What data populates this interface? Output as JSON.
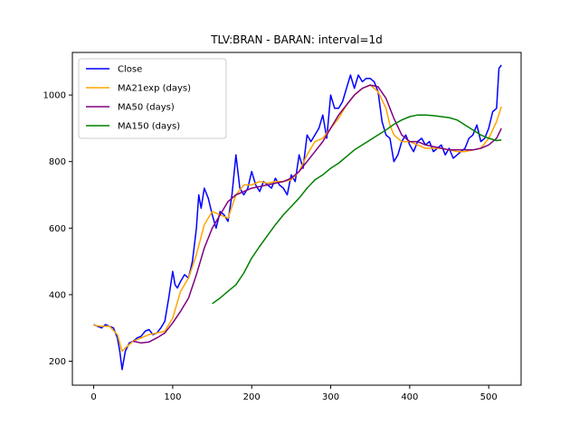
{
  "chart_data": {
    "type": "line",
    "title": "TLV:BRAN - BARAN: interval=1d",
    "xlabel": "",
    "ylabel": "",
    "xlim": [
      -27,
      541
    ],
    "ylim": [
      128,
      1128
    ],
    "xticks": [
      0,
      100,
      200,
      300,
      400,
      500
    ],
    "yticks": [
      200,
      400,
      600,
      800,
      1000
    ],
    "grid": false,
    "legend_position": "top-left",
    "series": [
      {
        "name": "Close",
        "color": "#0000ff",
        "x": [
          0,
          5,
          10,
          15,
          20,
          25,
          30,
          33,
          36,
          40,
          45,
          50,
          55,
          60,
          65,
          70,
          75,
          80,
          85,
          90,
          95,
          100,
          103,
          106,
          110,
          115,
          120,
          125,
          130,
          133,
          136,
          140,
          145,
          150,
          155,
          160,
          165,
          170,
          175,
          180,
          185,
          190,
          195,
          200,
          205,
          210,
          215,
          220,
          225,
          230,
          235,
          240,
          245,
          250,
          255,
          260,
          265,
          270,
          275,
          280,
          285,
          290,
          295,
          300,
          305,
          310,
          315,
          320,
          325,
          330,
          335,
          340,
          345,
          350,
          355,
          360,
          365,
          370,
          375,
          380,
          385,
          390,
          395,
          400,
          405,
          410,
          415,
          420,
          425,
          430,
          435,
          440,
          445,
          450,
          455,
          460,
          465,
          470,
          475,
          480,
          485,
          490,
          495,
          500,
          505,
          510,
          513,
          516
        ],
        "values": [
          310,
          305,
          300,
          310,
          305,
          300,
          270,
          230,
          175,
          230,
          255,
          260,
          270,
          275,
          290,
          295,
          280,
          285,
          300,
          320,
          390,
          470,
          430,
          420,
          440,
          460,
          450,
          500,
          600,
          700,
          660,
          720,
          690,
          640,
          600,
          650,
          640,
          620,
          700,
          820,
          720,
          700,
          720,
          770,
          730,
          710,
          740,
          730,
          720,
          750,
          730,
          720,
          700,
          760,
          740,
          820,
          780,
          880,
          860,
          880,
          900,
          940,
          870,
          1000,
          960,
          960,
          980,
          1020,
          1060,
          1020,
          1060,
          1040,
          1050,
          1050,
          1040,
          1010,
          920,
          880,
          870,
          800,
          820,
          860,
          880,
          850,
          830,
          860,
          870,
          850,
          860,
          830,
          840,
          850,
          820,
          840,
          810,
          820,
          830,
          840,
          870,
          880,
          910,
          860,
          870,
          900,
          950,
          960,
          1080,
          1090
        ]
      },
      {
        "name": "MA21exp (days)",
        "color": "#ffa500",
        "x": [
          0,
          10,
          20,
          30,
          36,
          40,
          50,
          60,
          70,
          80,
          90,
          100,
          110,
          120,
          130,
          140,
          150,
          160,
          170,
          180,
          190,
          200,
          210,
          220,
          230,
          240,
          250,
          260,
          270,
          280,
          290,
          300,
          310,
          320,
          330,
          340,
          350,
          360,
          370,
          375,
          380,
          390,
          400,
          410,
          420,
          430,
          440,
          450,
          460,
          470,
          480,
          490,
          500,
          510,
          516
        ],
        "values": [
          308,
          305,
          305,
          280,
          230,
          240,
          260,
          270,
          280,
          285,
          290,
          330,
          410,
          450,
          520,
          610,
          650,
          640,
          630,
          700,
          730,
          730,
          740,
          735,
          740,
          740,
          745,
          770,
          820,
          860,
          870,
          900,
          930,
          970,
          1000,
          1020,
          1030,
          1010,
          960,
          910,
          880,
          860,
          860,
          850,
          840,
          840,
          840,
          835,
          830,
          830,
          835,
          840,
          870,
          920,
          965
        ]
      },
      {
        "name": "MA50 (days)",
        "color": "#800080",
        "x": [
          50,
          60,
          70,
          80,
          90,
          100,
          110,
          120,
          130,
          140,
          150,
          160,
          170,
          180,
          190,
          200,
          210,
          220,
          230,
          240,
          250,
          260,
          270,
          280,
          290,
          300,
          310,
          320,
          330,
          340,
          350,
          360,
          370,
          380,
          390,
          400,
          410,
          420,
          430,
          440,
          450,
          460,
          470,
          480,
          490,
          500,
          510,
          516
        ],
        "values": [
          260,
          255,
          258,
          270,
          285,
          315,
          350,
          390,
          460,
          540,
          600,
          640,
          680,
          700,
          710,
          720,
          725,
          730,
          735,
          740,
          750,
          770,
          800,
          830,
          860,
          900,
          940,
          970,
          1000,
          1020,
          1030,
          1025,
          990,
          930,
          880,
          860,
          860,
          850,
          845,
          840,
          835,
          835,
          835,
          835,
          840,
          850,
          870,
          900
        ]
      },
      {
        "name": "MA150 (days)",
        "color": "#008000",
        "x": [
          150,
          160,
          170,
          180,
          190,
          200,
          210,
          220,
          230,
          240,
          250,
          260,
          270,
          280,
          290,
          300,
          310,
          320,
          330,
          340,
          350,
          360,
          370,
          380,
          390,
          400,
          410,
          420,
          430,
          440,
          450,
          460,
          470,
          480,
          490,
          500,
          510,
          516
        ],
        "values": [
          373,
          390,
          410,
          430,
          465,
          510,
          545,
          578,
          610,
          640,
          665,
          690,
          720,
          745,
          760,
          780,
          795,
          815,
          835,
          850,
          865,
          880,
          895,
          912,
          925,
          935,
          940,
          940,
          938,
          935,
          932,
          925,
          910,
          895,
          880,
          870,
          863,
          865
        ]
      }
    ]
  }
}
